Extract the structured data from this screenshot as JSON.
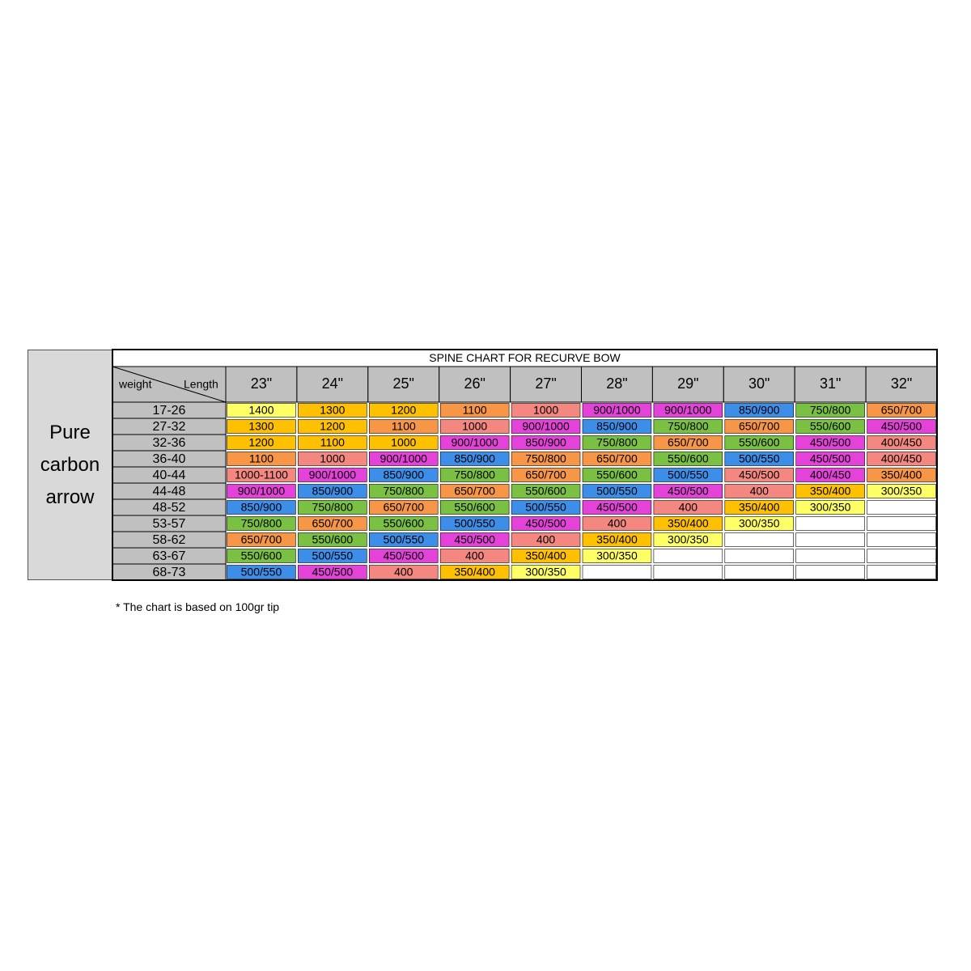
{
  "side_label": "Pure carbon arrow",
  "table": {
    "title": "SPINE CHART FOR RECURVE BOW",
    "corner_row": "weight",
    "corner_col": "Length",
    "columns": [
      "23\"",
      "24\"",
      "25\"",
      "26\"",
      "27\"",
      "28\"",
      "29\"",
      "30\"",
      "31\"",
      "32\""
    ],
    "rows": [
      {
        "label": "17-26",
        "cells": [
          "1400",
          "1300",
          "1200",
          "1100",
          "1000",
          "900/1000",
          "900/1000",
          "850/900",
          "750/800",
          "650/700"
        ],
        "colors": [
          "#ffff66",
          "#ffc000",
          "#ffc000",
          "#f79646",
          "#f4877f",
          "#e442d8",
          "#e442d8",
          "#3d8ee8",
          "#7ac143",
          "#f79646"
        ]
      },
      {
        "label": "27-32",
        "cells": [
          "1300",
          "1200",
          "1100",
          "1000",
          "900/1000",
          "850/900",
          "750/800",
          "650/700",
          "550/600",
          "450/500"
        ],
        "colors": [
          "#ffc000",
          "#ffc000",
          "#f79646",
          "#f4877f",
          "#e442d8",
          "#3d8ee8",
          "#7ac143",
          "#f79646",
          "#7ac143",
          "#e442d8"
        ]
      },
      {
        "label": "32-36",
        "cells": [
          "1200",
          "1100",
          "1000",
          "900/1000",
          "850/900",
          "750/800",
          "650/700",
          "550/600",
          "450/500",
          "400/450"
        ],
        "colors": [
          "#ffc000",
          "#ffc000",
          "#ffc000",
          "#e442d8",
          "#e442d8",
          "#7ac143",
          "#f79646",
          "#7ac143",
          "#e442d8",
          "#f4877f"
        ]
      },
      {
        "label": "36-40",
        "cells": [
          "1100",
          "1000",
          "900/1000",
          "850/900",
          "750/800",
          "650/700",
          "550/600",
          "500/550",
          "450/500",
          "400/450"
        ],
        "colors": [
          "#f79646",
          "#f4877f",
          "#e442d8",
          "#3d8ee8",
          "#f79646",
          "#f79646",
          "#7ac143",
          "#3d8ee8",
          "#e442d8",
          "#f4877f"
        ]
      },
      {
        "label": "40-44",
        "cells": [
          "1000-1100",
          "900/1000",
          "850/900",
          "750/800",
          "650/700",
          "550/600",
          "500/550",
          "450/500",
          "400/450",
          "350/400"
        ],
        "colors": [
          "#f4877f",
          "#e442d8",
          "#3d8ee8",
          "#7ac143",
          "#f79646",
          "#7ac143",
          "#3d8ee8",
          "#f4877f",
          "#e442d8",
          "#f79646"
        ]
      },
      {
        "label": "44-48",
        "cells": [
          "900/1000",
          "850/900",
          "750/800",
          "650/700",
          "550/600",
          "500/550",
          "450/500",
          "400",
          "350/400",
          "300/350"
        ],
        "colors": [
          "#e442d8",
          "#3d8ee8",
          "#7ac143",
          "#f79646",
          "#7ac143",
          "#3d8ee8",
          "#e442d8",
          "#f4877f",
          "#ffc000",
          "#ffff66"
        ]
      },
      {
        "label": "48-52",
        "cells": [
          "850/900",
          "750/800",
          "650/700",
          "550/600",
          "500/550",
          "450/500",
          "400",
          "350/400",
          "300/350",
          null
        ],
        "colors": [
          "#3d8ee8",
          "#7ac143",
          "#f79646",
          "#7ac143",
          "#3d8ee8",
          "#e442d8",
          "#f4877f",
          "#ffc000",
          "#ffff66",
          "#ffffff"
        ]
      },
      {
        "label": "53-57",
        "cells": [
          "750/800",
          "650/700",
          "550/600",
          "500/550",
          "450/500",
          "400",
          "350/400",
          "300/350",
          null,
          null
        ],
        "colors": [
          "#7ac143",
          "#f79646",
          "#7ac143",
          "#3d8ee8",
          "#e442d8",
          "#f4877f",
          "#ffc000",
          "#ffff66",
          "#ffffff",
          "#ffffff"
        ]
      },
      {
        "label": "58-62",
        "cells": [
          "650/700",
          "550/600",
          "500/550",
          "450/500",
          "400",
          "350/400",
          "300/350",
          null,
          null,
          null
        ],
        "colors": [
          "#f79646",
          "#7ac143",
          "#3d8ee8",
          "#e442d8",
          "#f4877f",
          "#ffc000",
          "#ffff66",
          "#ffffff",
          "#ffffff",
          "#ffffff"
        ]
      },
      {
        "label": "63-67",
        "cells": [
          "550/600",
          "500/550",
          "450/500",
          "400",
          "350/400",
          "300/350",
          null,
          null,
          null,
          null
        ],
        "colors": [
          "#7ac143",
          "#3d8ee8",
          "#e442d8",
          "#f4877f",
          "#ffc000",
          "#ffff66",
          "#ffffff",
          "#ffffff",
          "#ffffff",
          "#ffffff"
        ]
      },
      {
        "label": "68-73",
        "cells": [
          "500/550",
          "450/500",
          "400",
          "350/400",
          "300/350",
          null,
          null,
          null,
          null,
          null
        ],
        "colors": [
          "#3d8ee8",
          "#e442d8",
          "#f4877f",
          "#ffc000",
          "#ffff66",
          "#ffffff",
          "#ffffff",
          "#ffffff",
          "#ffffff",
          "#ffffff"
        ]
      }
    ]
  },
  "footnote": "* The chart is based on 100gr tip"
}
